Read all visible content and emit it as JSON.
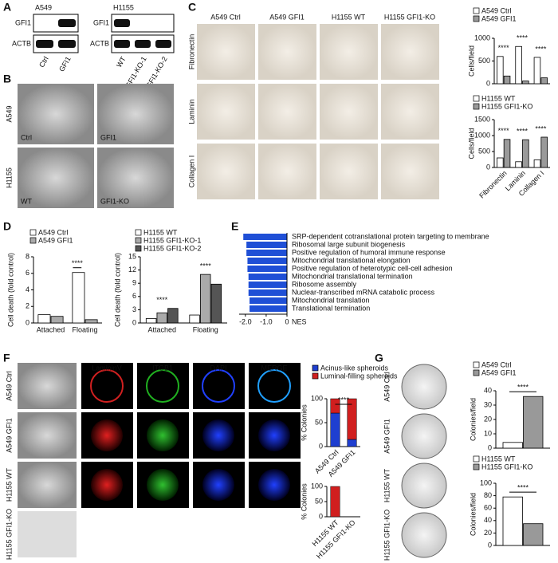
{
  "panels": {
    "A": {
      "label": "A",
      "blots": [
        {
          "cell_line": "A549",
          "proteins": [
            "GFI1",
            "ACTB"
          ],
          "lanes": [
            "Ctrl",
            "GFI1"
          ]
        },
        {
          "cell_line": "H1155",
          "proteins": [
            "GFI1",
            "ACTB"
          ],
          "lanes": [
            "WT",
            "GFI1-KO-1",
            "GFI1-KO-2"
          ]
        }
      ]
    },
    "B": {
      "label": "B",
      "rows": [
        "A549",
        "H1155"
      ],
      "images": [
        "Ctrl",
        "GFI1",
        "WT",
        "GFI1-KO"
      ]
    },
    "C": {
      "label": "C",
      "columns": [
        "A549 Ctrl",
        "A549 GFI1",
        "H1155 WT",
        "H1155 GFI1-KO"
      ],
      "rows": [
        "Fibronectin",
        "Laminin",
        "Collagen I"
      ]
    },
    "D": {
      "label": "D"
    },
    "E": {
      "label": "E"
    },
    "F": {
      "label": "F",
      "rows": [
        "A549 Ctrl",
        "A549 GFI1",
        "H1155 WT",
        "H1155 GFI1-KO"
      ],
      "channels": [
        "LamininV",
        "ITGB1",
        "DAPI",
        "MERGE"
      ]
    },
    "G": {
      "label": "G",
      "rows": [
        "A549 Ctrl",
        "A549 GFI1",
        "H1155 WT",
        "H1155 GFI1-KO"
      ]
    }
  },
  "chart_data": [
    {
      "type": "bar",
      "ylabel": "Cells/field",
      "categories": [
        null,
        null,
        null
      ],
      "ylim": [
        0,
        1000
      ],
      "yticks": [
        0,
        500,
        1000
      ],
      "annotations": [
        "****",
        "****",
        "****"
      ],
      "series": [
        {
          "name": "A549 Ctrl",
          "color": "#ffffff",
          "values": [
            600,
            820,
            580
          ]
        },
        {
          "name": "A549 GFI1",
          "color": "#9a9a9a",
          "values": [
            170,
            60,
            130
          ]
        }
      ]
    },
    {
      "type": "bar",
      "ylabel": "Cells/field",
      "categories": [
        "Fibronectin",
        "Laminin",
        "Collagen I"
      ],
      "ylim": [
        0,
        1500
      ],
      "yticks": [
        0,
        500,
        1000,
        1500
      ],
      "annotations": [
        "****",
        "****",
        "****"
      ],
      "series": [
        {
          "name": "H1155 WT",
          "color": "#ffffff",
          "values": [
            300,
            180,
            240
          ]
        },
        {
          "name": "H1155 GFI1-KO",
          "color": "#9a9a9a",
          "values": [
            880,
            870,
            950
          ]
        }
      ]
    },
    {
      "type": "bar",
      "ylabel": "Cell death (fold control)",
      "categories": [
        "Attached",
        "Floating"
      ],
      "ylim": [
        0,
        8
      ],
      "yticks": [
        0,
        2,
        4,
        6,
        8
      ],
      "annotations": [
        "****"
      ],
      "series": [
        {
          "name": "A549 Ctrl",
          "color": "#ffffff",
          "values": [
            1,
            6.1
          ]
        },
        {
          "name": "A549 GFI1",
          "color": "#aaaaaa",
          "values": [
            0.8,
            0.4
          ]
        }
      ]
    },
    {
      "type": "bar",
      "ylabel": "Cell death (fold control)",
      "categories": [
        "Attached",
        "Floating"
      ],
      "ylim": [
        0,
        15
      ],
      "yticks": [
        0,
        3,
        6,
        9,
        12,
        15
      ],
      "annotations": [
        "****",
        "****"
      ],
      "series": [
        {
          "name": "H1155 WT",
          "color": "#ffffff",
          "values": [
            1,
            1.8
          ]
        },
        {
          "name": "H1155 GFI1-KO-1",
          "color": "#aaaaaa",
          "values": [
            2.3,
            11
          ]
        },
        {
          "name": "H1155 GFI1-KO-2",
          "color": "#555555",
          "values": [
            3.3,
            8.8
          ]
        }
      ]
    },
    {
      "type": "barh",
      "xlabel": "NES",
      "color": "#1f4fd6",
      "xlim": [
        -2.3,
        0
      ],
      "xticks": [
        {
          "value": -2,
          "label": "-2.0"
        },
        {
          "value": -1,
          "label": "-1.0"
        },
        0
      ],
      "categories": [
        "SRP-dependent cotranslational protein targeting to membrane",
        "Ribosomal large subunit biogenesis",
        "Positive regulation of humoral immune response",
        "Mitochondrial translational elongation",
        "Positive regulation of heterotypic cell-cell adhesion",
        "Mitochondrial translational termination",
        "Ribosome assembly",
        "Nuclear-transcribed mRNA catabolic process",
        "Mitochondrial translation",
        "Translational termination"
      ],
      "values": [
        -2.1,
        -1.95,
        -1.95,
        -1.9,
        -1.9,
        -1.85,
        -1.85,
        -1.85,
        -1.8,
        -1.8
      ]
    },
    {
      "type": "stacked_bar",
      "ylabel": "% Colonies",
      "categories": [
        "A549 Ctrl",
        "A549 GFI1"
      ],
      "ylim": [
        0,
        100
      ],
      "yticks": [
        0,
        50,
        100
      ],
      "annotations": [
        "****"
      ],
      "series": [
        {
          "name": "Acinus-like spheroids",
          "color": "#1f3fd0",
          "values": [
            70,
            15
          ]
        },
        {
          "name": "Luminal-filling spheroids",
          "color": "#d01f1f",
          "values": [
            30,
            85
          ]
        }
      ]
    },
    {
      "type": "stacked_bar",
      "ylabel": "% Colonies",
      "categories": [
        "H1155 WT",
        "H1155 GFI1-KO"
      ],
      "ylim": [
        0,
        100
      ],
      "yticks": [
        0,
        50,
        100
      ],
      "series": [
        {
          "color": "#1f3fd0",
          "values": [
            0,
            0
          ]
        },
        {
          "color": "#d01f1f",
          "values": [
            100,
            0
          ]
        }
      ]
    },
    {
      "type": "bar",
      "ylabel": "Colonies/field",
      "categories": [
        null
      ],
      "ylim": [
        0,
        40
      ],
      "yticks": [
        0,
        10,
        20,
        30,
        40
      ],
      "annotations": [
        "****"
      ],
      "series": [
        {
          "name": "A549 Ctrl",
          "color": "#ffffff",
          "values": [
            4
          ]
        },
        {
          "name": "A549 GFI1",
          "color": "#999999",
          "values": [
            36
          ]
        }
      ]
    },
    {
      "type": "bar",
      "ylabel": "Colonies/field",
      "categories": [
        null
      ],
      "ylim": [
        0,
        100
      ],
      "yticks": [
        0,
        20,
        40,
        60,
        80,
        100
      ],
      "annotations": [
        "****"
      ],
      "series": [
        {
          "name": "H1155 WT",
          "color": "#ffffff",
          "values": [
            78
          ]
        },
        {
          "name": "H1155 GFI1-KO",
          "color": "#999999",
          "values": [
            35
          ]
        }
      ]
    }
  ]
}
